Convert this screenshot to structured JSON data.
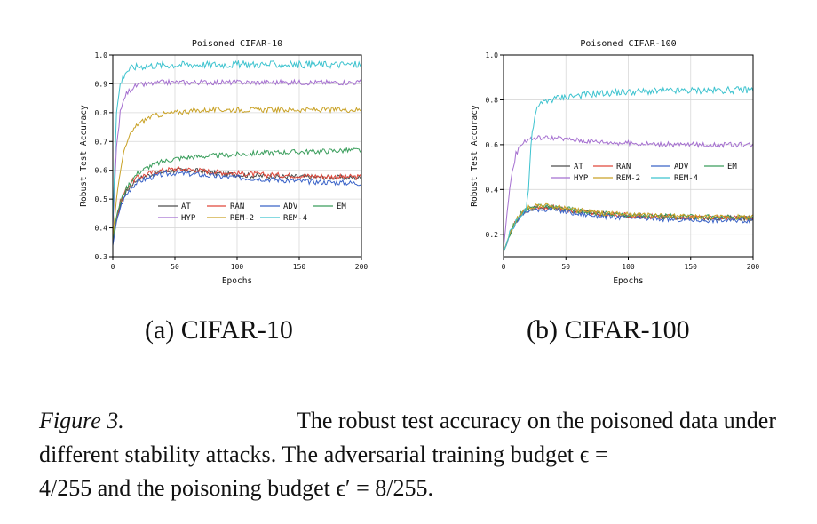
{
  "charts": [
    {
      "id": "a",
      "subcaption": "(a) CIFAR-10",
      "chart_data": {
        "type": "line",
        "title": "Poisoned CIFAR-10",
        "xlabel": "Epochs",
        "ylabel": "Robust Test Accuracy",
        "xlim": [
          0,
          200
        ],
        "ylim": [
          0.3,
          1.0
        ],
        "xticks": [
          0,
          50,
          100,
          150,
          200
        ],
        "yticks": [
          0.3,
          0.4,
          0.5,
          0.6,
          0.7,
          0.8,
          0.9,
          1.0
        ],
        "grid": true,
        "legend_position": "lower-center",
        "series": [
          {
            "name": "AT",
            "color": "#4d4d4d",
            "x": [
              0,
              3,
              6,
              10,
              15,
              20,
              30,
              40,
              50,
              60,
              70,
              80,
              100,
              120,
              140,
              160,
              180,
              200
            ],
            "y": [
              0.35,
              0.43,
              0.48,
              0.52,
              0.55,
              0.57,
              0.585,
              0.595,
              0.6,
              0.6,
              0.598,
              0.59,
              0.585,
              0.58,
              0.578,
              0.577,
              0.575,
              0.574
            ]
          },
          {
            "name": "RAN",
            "color": "#e0473a",
            "x": [
              0,
              3,
              6,
              10,
              15,
              20,
              30,
              40,
              50,
              60,
              70,
              80,
              100,
              120,
              140,
              160,
              180,
              200
            ],
            "y": [
              0.35,
              0.43,
              0.49,
              0.53,
              0.56,
              0.575,
              0.59,
              0.6,
              0.605,
              0.603,
              0.6,
              0.595,
              0.59,
              0.585,
              0.583,
              0.58,
              0.578,
              0.577
            ]
          },
          {
            "name": "ADV",
            "color": "#3a63c8",
            "x": [
              0,
              3,
              6,
              10,
              15,
              20,
              30,
              40,
              50,
              60,
              70,
              80,
              100,
              120,
              140,
              160,
              180,
              200
            ],
            "y": [
              0.34,
              0.42,
              0.47,
              0.51,
              0.54,
              0.56,
              0.575,
              0.585,
              0.59,
              0.588,
              0.585,
              0.58,
              0.575,
              0.57,
              0.565,
              0.56,
              0.558,
              0.555
            ]
          },
          {
            "name": "EM",
            "color": "#3a9e5c",
            "x": [
              0,
              3,
              6,
              10,
              15,
              20,
              30,
              40,
              50,
              60,
              70,
              80,
              100,
              120,
              140,
              160,
              180,
              200
            ],
            "y": [
              0.36,
              0.44,
              0.49,
              0.53,
              0.565,
              0.59,
              0.615,
              0.63,
              0.64,
              0.645,
              0.648,
              0.65,
              0.655,
              0.66,
              0.663,
              0.665,
              0.668,
              0.67
            ]
          },
          {
            "name": "HYP",
            "color": "#a56fd0",
            "x": [
              0,
              3,
              6,
              10,
              15,
              20,
              30,
              40,
              50,
              60,
              70,
              80,
              100,
              120,
              140,
              160,
              180,
              200
            ],
            "y": [
              0.4,
              0.68,
              0.8,
              0.86,
              0.885,
              0.895,
              0.9,
              0.905,
              0.905,
              0.905,
              0.905,
              0.905,
              0.905,
              0.905,
              0.905,
              0.905,
              0.905,
              0.905
            ]
          },
          {
            "name": "REM-2",
            "color": "#c9a227",
            "x": [
              0,
              3,
              6,
              10,
              15,
              20,
              30,
              40,
              50,
              60,
              70,
              80,
              100,
              120,
              140,
              160,
              180,
              200
            ],
            "y": [
              0.37,
              0.5,
              0.6,
              0.68,
              0.73,
              0.76,
              0.785,
              0.795,
              0.8,
              0.805,
              0.808,
              0.81,
              0.81,
              0.81,
              0.81,
              0.81,
              0.81,
              0.81
            ]
          },
          {
            "name": "REM-4",
            "color": "#3ec3cf",
            "x": [
              0,
              3,
              6,
              10,
              15,
              20,
              30,
              40,
              50,
              60,
              70,
              80,
              100,
              120,
              140,
              160,
              180,
              200
            ],
            "y": [
              0.42,
              0.8,
              0.9,
              0.94,
              0.955,
              0.96,
              0.963,
              0.965,
              0.966,
              0.967,
              0.967,
              0.967,
              0.967,
              0.967,
              0.967,
              0.967,
              0.967,
              0.967
            ]
          }
        ]
      }
    },
    {
      "id": "b",
      "subcaption": "(b) CIFAR-100",
      "chart_data": {
        "type": "line",
        "title": "Poisoned CIFAR-100",
        "xlabel": "Epochs",
        "ylabel": "Robust Test Accuracy",
        "xlim": [
          0,
          200
        ],
        "ylim": [
          0.1,
          1.0
        ],
        "xticks": [
          0,
          50,
          100,
          150,
          200
        ],
        "yticks": [
          0.2,
          0.4,
          0.6,
          0.8,
          1.0
        ],
        "grid": true,
        "legend_position": "center",
        "series": [
          {
            "name": "AT",
            "color": "#4d4d4d",
            "x": [
              0,
              5,
              10,
              15,
              20,
              25,
              30,
              40,
              50,
              60,
              80,
              100,
              120,
              140,
              160,
              180,
              200
            ],
            "y": [
              0.12,
              0.2,
              0.26,
              0.295,
              0.31,
              0.318,
              0.32,
              0.318,
              0.31,
              0.3,
              0.29,
              0.283,
              0.278,
              0.275,
              0.273,
              0.272,
              0.272
            ]
          },
          {
            "name": "RAN",
            "color": "#e0473a",
            "x": [
              0,
              5,
              10,
              15,
              20,
              25,
              30,
              40,
              50,
              60,
              80,
              100,
              120,
              140,
              160,
              180,
              200
            ],
            "y": [
              0.12,
              0.2,
              0.26,
              0.297,
              0.312,
              0.32,
              0.322,
              0.32,
              0.312,
              0.302,
              0.29,
              0.284,
              0.28,
              0.277,
              0.275,
              0.274,
              0.274
            ]
          },
          {
            "name": "ADV",
            "color": "#3a63c8",
            "x": [
              0,
              5,
              10,
              15,
              20,
              25,
              30,
              40,
              50,
              60,
              80,
              100,
              120,
              140,
              160,
              180,
              200
            ],
            "y": [
              0.12,
              0.195,
              0.255,
              0.29,
              0.305,
              0.31,
              0.312,
              0.31,
              0.3,
              0.29,
              0.28,
              0.273,
              0.268,
              0.265,
              0.263,
              0.262,
              0.262
            ]
          },
          {
            "name": "EM",
            "color": "#3a9e5c",
            "x": [
              0,
              5,
              10,
              15,
              20,
              25,
              30,
              40,
              50,
              60,
              80,
              100,
              120,
              140,
              160,
              180,
              200
            ],
            "y": [
              0.12,
              0.2,
              0.262,
              0.3,
              0.315,
              0.322,
              0.325,
              0.322,
              0.315,
              0.305,
              0.293,
              0.286,
              0.282,
              0.279,
              0.277,
              0.276,
              0.276
            ]
          },
          {
            "name": "HYP",
            "color": "#a56fd0",
            "x": [
              0,
              3,
              6,
              10,
              15,
              20,
              25,
              30,
              40,
              50,
              60,
              80,
              100,
              120,
              140,
              160,
              180,
              200
            ],
            "y": [
              0.13,
              0.3,
              0.45,
              0.56,
              0.61,
              0.625,
              0.63,
              0.632,
              0.63,
              0.625,
              0.62,
              0.612,
              0.607,
              0.603,
              0.6,
              0.6,
              0.6,
              0.6
            ]
          },
          {
            "name": "REM-2",
            "color": "#c9a227",
            "x": [
              0,
              5,
              10,
              15,
              20,
              25,
              30,
              40,
              50,
              60,
              80,
              100,
              120,
              140,
              160,
              180,
              200
            ],
            "y": [
              0.12,
              0.205,
              0.265,
              0.302,
              0.318,
              0.325,
              0.328,
              0.325,
              0.317,
              0.307,
              0.295,
              0.288,
              0.283,
              0.28,
              0.278,
              0.277,
              0.277
            ]
          },
          {
            "name": "REM-4",
            "color": "#3ec3cf",
            "x": [
              0,
              5,
              10,
              15,
              18,
              20,
              22,
              25,
              28,
              32,
              40,
              50,
              60,
              80,
              100,
              120,
              140,
              160,
              180,
              200
            ],
            "y": [
              0.12,
              0.2,
              0.26,
              0.3,
              0.31,
              0.4,
              0.6,
              0.73,
              0.77,
              0.79,
              0.805,
              0.815,
              0.82,
              0.83,
              0.835,
              0.838,
              0.84,
              0.842,
              0.843,
              0.845
            ]
          }
        ]
      }
    }
  ],
  "caption": {
    "label": "Figure 3.",
    "line1": "The robust test accuracy on the poisoned data under",
    "line2": "different stability attacks.  The adversarial training budget ϵ =",
    "line3": "4/255 and the poisoning budget ϵ′ = 8/255."
  }
}
